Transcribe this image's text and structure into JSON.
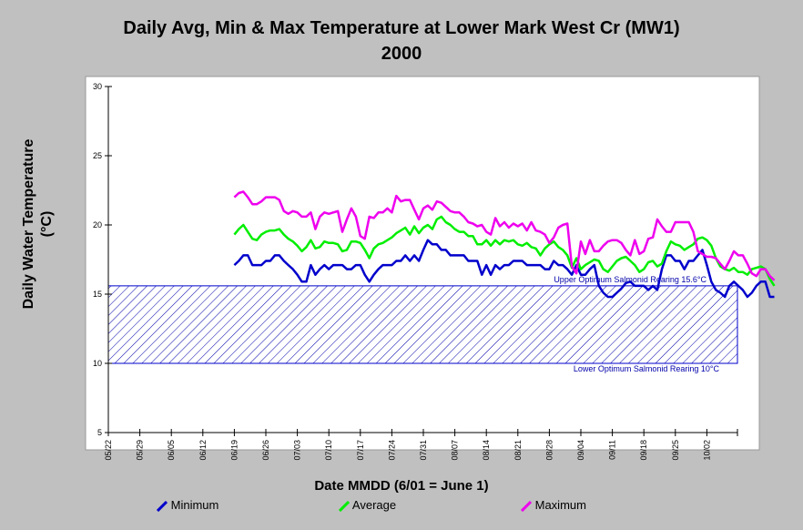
{
  "chart_data": {
    "type": "line",
    "title": "Daily Avg, Min & Max Temperature at Lower Mark West Cr (MW1)",
    "subtitle": "2000",
    "xlabel": "Date MMDD (6/01 = June 1)",
    "ylabel": "Daily Water Temperature",
    "ylabel_unit": "(°C)",
    "ylim": [
      5,
      30
    ],
    "yticks": [
      "5",
      "10",
      "15",
      "20",
      "25",
      "30"
    ],
    "xticks": [
      "05/22",
      "05/29",
      "06/05",
      "06/12",
      "06/19",
      "06/26",
      "07/03",
      "07/10",
      "07/17",
      "07/24",
      "07/31",
      "08/07",
      "08/14",
      "08/21",
      "08/28",
      "09/04",
      "09/11",
      "09/18",
      "09/25",
      "10/02"
    ],
    "x_start": "06/19",
    "x_step_days": 1,
    "grid": false,
    "legend_position": "bottom",
    "band": {
      "lower": 10,
      "upper": 15.6,
      "upper_label": "Upper Optimum Salmonid Rearing 15.6°C",
      "lower_label": "Lower Optimum Salmonid Rearing 10°C",
      "color": "#0000cc"
    },
    "series": [
      {
        "name": "Minimum",
        "color": "#0000cc",
        "values": [
          17.1,
          17.4,
          17.8,
          17.8,
          17.1,
          17.1,
          17.1,
          17.4,
          17.4,
          17.8,
          17.8,
          17.4,
          17.1,
          16.8,
          16.4,
          15.9,
          15.9,
          17.1,
          16.4,
          16.8,
          17.1,
          16.8,
          17.1,
          17.1,
          17.1,
          16.8,
          16.8,
          17.1,
          17.1,
          16.4,
          15.9,
          16.4,
          16.8,
          17.1,
          17.1,
          17.1,
          17.4,
          17.4,
          17.8,
          17.4,
          17.8,
          17.4,
          18.2,
          18.9,
          18.6,
          18.6,
          18.2,
          18.2,
          17.8,
          17.8,
          17.8,
          17.8,
          17.4,
          17.4,
          17.4,
          16.4,
          17.1,
          16.4,
          17.1,
          16.8,
          17.1,
          17.1,
          17.4,
          17.4,
          17.4,
          17.1,
          17.1,
          17.1,
          17.1,
          16.8,
          16.8,
          17.4,
          17.1,
          17.1,
          16.8,
          16.4,
          17.1,
          16.4,
          16.4,
          16.8,
          17.1,
          15.6,
          15.1,
          14.8,
          14.8,
          15.1,
          15.4,
          15.8,
          15.9,
          15.6,
          15.6,
          15.6,
          15.3,
          15.6,
          15.3,
          16.8,
          17.8,
          17.8,
          17.4,
          17.4,
          16.8,
          17.4,
          17.4,
          17.8,
          18.2,
          17.1,
          15.9,
          15.3,
          15.1,
          14.8,
          15.6,
          15.9,
          15.6,
          15.3,
          14.8,
          15.1,
          15.6,
          15.9,
          15.9,
          14.8,
          14.8
        ]
      },
      {
        "name": "Average",
        "color": "#00ee00",
        "values": [
          19.3,
          19.7,
          20.0,
          19.5,
          19.0,
          18.9,
          19.3,
          19.5,
          19.6,
          19.6,
          19.7,
          19.3,
          19.0,
          18.8,
          18.5,
          18.1,
          18.4,
          18.9,
          18.3,
          18.4,
          18.8,
          18.7,
          18.7,
          18.6,
          18.1,
          18.2,
          18.8,
          18.8,
          18.7,
          18.2,
          17.6,
          18.3,
          18.6,
          18.7,
          18.9,
          19.1,
          19.4,
          19.6,
          19.8,
          19.3,
          19.9,
          19.4,
          19.8,
          20.0,
          19.7,
          20.4,
          20.6,
          20.2,
          20.0,
          19.7,
          19.5,
          19.5,
          19.2,
          19.2,
          18.6,
          18.6,
          18.9,
          18.5,
          18.9,
          18.6,
          18.9,
          18.8,
          18.9,
          18.6,
          18.5,
          18.7,
          18.4,
          18.3,
          17.8,
          18.3,
          18.6,
          18.8,
          18.4,
          18.2,
          17.8,
          16.9,
          17.6,
          16.8,
          17.1,
          17.3,
          17.5,
          17.4,
          16.8,
          16.6,
          17.0,
          17.4,
          17.6,
          17.7,
          17.4,
          17.1,
          16.6,
          16.8,
          17.3,
          17.4,
          17.0,
          17.2,
          18.1,
          18.8,
          18.6,
          18.5,
          18.2,
          18.4,
          18.6,
          19.0,
          19.1,
          18.9,
          18.5,
          17.6,
          17.0,
          16.8,
          16.7,
          16.9,
          16.6,
          16.6,
          16.4,
          16.8,
          16.9,
          17.0,
          16.8,
          16.1,
          15.6
        ]
      },
      {
        "name": "Maximum",
        "color": "#ee00ee",
        "values": [
          22.0,
          22.3,
          22.4,
          22.0,
          21.5,
          21.5,
          21.7,
          22.0,
          22.0,
          22.0,
          21.8,
          21.0,
          20.8,
          21.0,
          20.9,
          20.6,
          20.6,
          20.9,
          19.7,
          20.6,
          20.9,
          20.8,
          20.9,
          21.0,
          19.5,
          20.4,
          21.2,
          20.6,
          19.2,
          19.0,
          20.6,
          20.5,
          20.9,
          20.9,
          21.2,
          20.9,
          22.1,
          21.7,
          21.8,
          21.8,
          21.1,
          20.4,
          21.2,
          21.4,
          21.1,
          21.7,
          21.6,
          21.3,
          21.0,
          20.9,
          20.9,
          20.6,
          20.2,
          20.1,
          19.9,
          20.0,
          19.5,
          19.3,
          20.5,
          19.9,
          20.2,
          19.8,
          20.1,
          19.9,
          20.1,
          19.6,
          20.2,
          19.6,
          19.5,
          19.3,
          18.7,
          19.1,
          19.8,
          20.0,
          20.1,
          17.0,
          16.5,
          18.8,
          17.9,
          18.9,
          18.1,
          18.1,
          18.5,
          18.8,
          18.9,
          18.9,
          18.7,
          18.2,
          17.8,
          18.9,
          17.9,
          18.1,
          19.0,
          19.1,
          20.4,
          19.9,
          19.5,
          19.5,
          20.2,
          20.2,
          20.2,
          20.2,
          19.5,
          18.1,
          17.9,
          17.7,
          17.7,
          17.6,
          17.2,
          16.8,
          17.4,
          18.1,
          17.8,
          17.8,
          17.2,
          16.5,
          16.3,
          16.8,
          16.8,
          16.3,
          16.0
        ]
      }
    ]
  }
}
